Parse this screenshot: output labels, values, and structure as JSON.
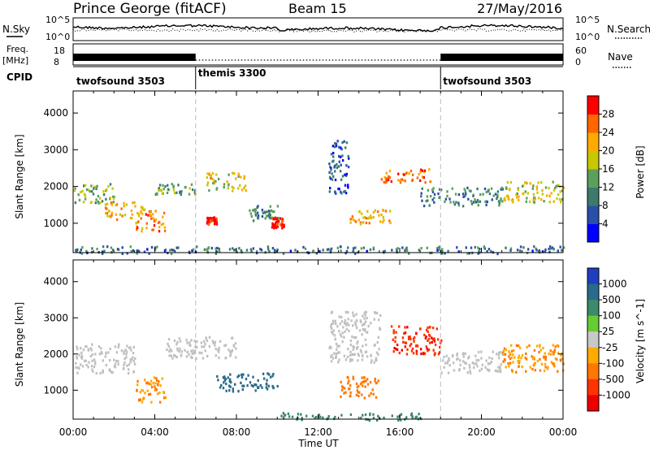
{
  "header": {
    "station": "Prince George (fitACF)",
    "beam": "Beam 15",
    "date": "27/May/2016"
  },
  "noise_panel": {
    "left_label": "N.Sky",
    "right_label": "N.Search",
    "left_ticks": [
      "10^5",
      "10^0"
    ],
    "right_ticks": [
      "10^5",
      "10^0"
    ]
  },
  "freq_panel": {
    "left_label_1": "Freq.",
    "left_label_2": "[MHz]",
    "right_label": "Nave",
    "left_ticks": [
      "18",
      "8"
    ],
    "right_ticks": [
      "60",
      "0"
    ]
  },
  "cpid": {
    "label": "CPID",
    "segments": [
      {
        "name": "twofsound 3503",
        "start_h": 0,
        "end_h": 6
      },
      {
        "name": "themis 3300",
        "start_h": 6,
        "end_h": 18
      },
      {
        "name": "twofsound 3503",
        "start_h": 18,
        "end_h": 24
      }
    ]
  },
  "colors": {
    "power_scale": [
      "#0000ff",
      "#2a4fa8",
      "#3d7a6e",
      "#5aa05a",
      "#c8c800",
      "#ffaa00",
      "#ff6600",
      "#ff0000"
    ],
    "velocity_scale": [
      "#1f3fbf",
      "#2a6a8a",
      "#3d8a6a",
      "#66cc33",
      "#c8c8c8",
      "#ffaa00",
      "#ff7700",
      "#ff3300",
      "#ee0000"
    ],
    "ground_scatter": "#c0c0c0"
  },
  "chart_data": [
    {
      "type": "heatmap",
      "title": "Power",
      "xlabel": "Time UT",
      "ylabel": "Slant Range [km]",
      "xlim": [
        0,
        24
      ],
      "ylim": [
        200,
        4600
      ],
      "x_ticks": [
        "00:00",
        "04:00",
        "08:00",
        "12:00",
        "16:00",
        "20:00",
        "00:00"
      ],
      "y_ticks": [
        1000,
        2000,
        3000,
        4000
      ],
      "colorbar": {
        "label": "Power [dB]",
        "ticks": [
          "4",
          "8",
          "12",
          "16",
          "20",
          "24",
          "28"
        ],
        "range": [
          0,
          30
        ]
      },
      "blobs": [
        {
          "t0": 0.0,
          "t1": 2.0,
          "r0": 1550,
          "r1": 2100,
          "value": 14
        },
        {
          "t0": 1.5,
          "t1": 3.5,
          "r0": 1100,
          "r1": 1600,
          "value": 20
        },
        {
          "t0": 3.0,
          "t1": 4.5,
          "r0": 800,
          "r1": 1400,
          "value": 22
        },
        {
          "t0": 4.0,
          "t1": 6.0,
          "r0": 1800,
          "r1": 2100,
          "value": 12
        },
        {
          "t0": 6.5,
          "t1": 8.5,
          "r0": 1900,
          "r1": 2400,
          "value": 18
        },
        {
          "t0": 6.5,
          "t1": 7.0,
          "r0": 1000,
          "r1": 1200,
          "value": 28
        },
        {
          "t0": 8.5,
          "t1": 10.0,
          "r0": 1100,
          "r1": 1500,
          "value": 10
        },
        {
          "t0": 9.7,
          "t1": 10.3,
          "r0": 900,
          "r1": 1200,
          "value": 29
        },
        {
          "t0": 12.5,
          "t1": 13.5,
          "r0": 1800,
          "r1": 3300,
          "value": 6
        },
        {
          "t0": 13.5,
          "t1": 15.5,
          "r0": 1000,
          "r1": 1400,
          "value": 20
        },
        {
          "t0": 15.0,
          "t1": 17.5,
          "r0": 2100,
          "r1": 2500,
          "value": 24
        },
        {
          "t0": 17.0,
          "t1": 21.0,
          "r0": 1500,
          "r1": 2000,
          "value": 10
        },
        {
          "t0": 21.0,
          "t1": 24.0,
          "r0": 1600,
          "r1": 2200,
          "value": 16
        },
        {
          "t0": 0.0,
          "t1": 24.0,
          "r0": 200,
          "r1": 400,
          "value": 8
        }
      ]
    },
    {
      "type": "heatmap",
      "title": "Velocity",
      "xlabel": "Time UT",
      "ylabel": "Slant Range [km]",
      "xlim": [
        0,
        24
      ],
      "ylim": [
        200,
        4600
      ],
      "x_ticks": [
        "00:00",
        "04:00",
        "08:00",
        "12:00",
        "16:00",
        "20:00",
        "00:00"
      ],
      "y_ticks": [
        1000,
        2000,
        3000,
        4000
      ],
      "colorbar": {
        "label": "Velocity [m s^-1]",
        "ticks": [
          "1000",
          "500",
          "100",
          "25",
          "-25",
          "-100",
          "-500",
          "-1000"
        ],
        "range": [
          1000,
          -1000
        ]
      },
      "blobs": [
        {
          "t0": 0.0,
          "t1": 3.0,
          "r0": 1500,
          "r1": 2300,
          "value": "ground"
        },
        {
          "t0": 3.0,
          "t1": 4.5,
          "r0": 700,
          "r1": 1400,
          "value": -100
        },
        {
          "t0": 4.5,
          "t1": 8.0,
          "r0": 1900,
          "r1": 2500,
          "value": "ground"
        },
        {
          "t0": 7.0,
          "t1": 10.0,
          "r0": 1000,
          "r1": 1500,
          "value": 200
        },
        {
          "t0": 12.5,
          "t1": 15.0,
          "r0": 1800,
          "r1": 3200,
          "value": "ground"
        },
        {
          "t0": 13.0,
          "t1": 15.0,
          "r0": 800,
          "r1": 1400,
          "value": -300
        },
        {
          "t0": 15.5,
          "t1": 18.0,
          "r0": 2000,
          "r1": 2800,
          "value": -800
        },
        {
          "t0": 18.0,
          "t1": 21.0,
          "r0": 1500,
          "r1": 2100,
          "value": "ground"
        },
        {
          "t0": 21.0,
          "t1": 24.0,
          "r0": 1500,
          "r1": 2300,
          "value": -100
        },
        {
          "t0": 10.0,
          "t1": 17.0,
          "r0": 200,
          "r1": 400,
          "value": 60
        }
      ]
    }
  ],
  "axis": {
    "xlabel": "Time UT"
  }
}
